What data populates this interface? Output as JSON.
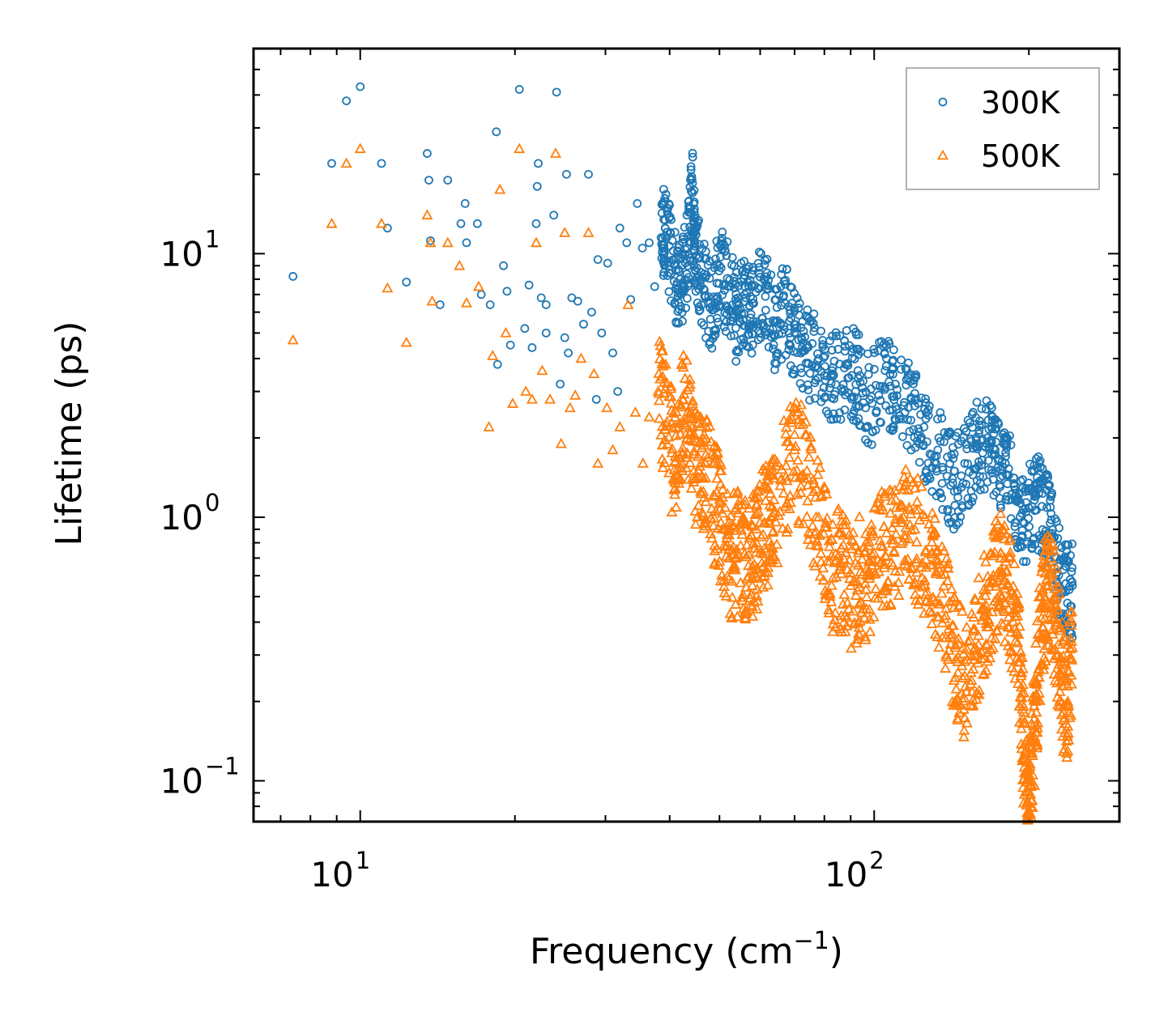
{
  "chart_data": {
    "type": "scatter",
    "xscale": "log",
    "yscale": "log",
    "xlabel": "Frequency (cm",
    "xlabel_sup": "−1",
    "xlabel_tail": ")",
    "ylabel": "Lifetime (ps)",
    "xlim": [
      6.2,
      300
    ],
    "ylim": [
      0.07,
      60
    ],
    "legend_position": "top-right",
    "x_ticks": [
      {
        "value": 10,
        "base": "10",
        "exp": "1"
      },
      {
        "value": 100,
        "base": "10",
        "exp": "2"
      }
    ],
    "y_ticks": [
      {
        "value": 0.1,
        "base": "10",
        "exp": "−1"
      },
      {
        "value": 1,
        "base": "10",
        "exp": "0"
      },
      {
        "value": 10,
        "base": "10",
        "exp": "1"
      }
    ],
    "series": [
      {
        "name": "300K",
        "marker": "circle",
        "color": "#1f77b4",
        "points": [
          [
            7.4,
            8.2
          ],
          [
            8.8,
            22
          ],
          [
            9.4,
            38
          ],
          [
            10.0,
            43
          ],
          [
            11.0,
            22
          ],
          [
            11.3,
            12.5
          ],
          [
            12.3,
            7.8
          ],
          [
            13.5,
            24
          ],
          [
            13.6,
            19
          ],
          [
            13.7,
            11.2
          ],
          [
            14.3,
            6.4
          ],
          [
            14.8,
            19
          ],
          [
            15.7,
            13
          ],
          [
            16.0,
            15.5
          ],
          [
            16.1,
            11
          ],
          [
            16.9,
            13
          ],
          [
            17.2,
            7
          ],
          [
            17.9,
            6.4
          ],
          [
            18.4,
            29
          ],
          [
            18.5,
            3.8
          ],
          [
            19.0,
            9
          ],
          [
            19.3,
            7.2
          ],
          [
            19.6,
            4.5
          ],
          [
            20.4,
            42
          ],
          [
            20.9,
            5.2
          ],
          [
            21.3,
            7.6
          ],
          [
            21.6,
            4.4
          ],
          [
            22.0,
            13
          ],
          [
            22.1,
            18
          ],
          [
            22.2,
            22
          ],
          [
            22.5,
            6.8
          ],
          [
            23.0,
            6.4
          ],
          [
            23.0,
            5.0
          ],
          [
            23.8,
            14
          ],
          [
            24.1,
            41
          ],
          [
            24.5,
            3.2
          ],
          [
            25.0,
            4.8
          ],
          [
            25.2,
            20
          ],
          [
            25.4,
            4.2
          ],
          [
            25.8,
            6.8
          ],
          [
            26.5,
            6.6
          ],
          [
            27.2,
            5.4
          ],
          [
            27.8,
            20
          ],
          [
            28.2,
            6.0
          ],
          [
            28.8,
            2.8
          ],
          [
            29.0,
            9.5
          ],
          [
            29.5,
            5.0
          ],
          [
            30.3,
            9.2
          ],
          [
            31.0,
            4.2
          ],
          [
            31.7,
            3.0
          ],
          [
            32.0,
            12.5
          ],
          [
            33.0,
            11
          ],
          [
            33.6,
            6.7
          ],
          [
            34.6,
            15.5
          ],
          [
            35.4,
            10.5
          ],
          [
            36.5,
            11
          ],
          [
            37.4,
            7.5
          ],
          [
            38.5,
            11.5
          ],
          [
            39.2,
            12.5
          ],
          [
            40.8,
            9.5
          ],
          [
            42.0,
            7.0
          ],
          [
            43.3,
            10.5
          ],
          [
            44.3,
            17
          ],
          [
            44.8,
            11
          ],
          [
            46.0,
            8.5
          ],
          [
            48.0,
            6.5
          ],
          [
            50.0,
            9.0
          ],
          [
            52.0,
            7.5
          ],
          [
            54.0,
            6.0
          ],
          [
            56.0,
            7.0
          ],
          [
            58.0,
            6.5
          ],
          [
            61.0,
            8.0
          ],
          [
            64.0,
            5.5
          ],
          [
            67.0,
            6.5
          ],
          [
            70.0,
            5.0
          ],
          [
            74.0,
            4.5
          ],
          [
            78.0,
            4.0
          ],
          [
            83.0,
            3.5
          ],
          [
            88.0,
            3.8
          ],
          [
            93.0,
            3.6
          ],
          [
            98.0,
            2.8
          ],
          [
            105.0,
            3.6
          ],
          [
            110.0,
            3.2
          ],
          [
            118.0,
            2.8
          ],
          [
            125.0,
            2.2
          ],
          [
            133.0,
            1.8
          ],
          [
            142.0,
            1.4
          ],
          [
            150.0,
            1.6
          ],
          [
            158.0,
            1.9
          ],
          [
            166.0,
            2.0
          ],
          [
            172.0,
            1.8
          ],
          [
            180.0,
            1.6
          ],
          [
            188.0,
            1.2
          ],
          [
            196.0,
            0.95
          ],
          [
            205.0,
            1.25
          ],
          [
            212.0,
            1.1
          ],
          [
            220.0,
            0.95
          ],
          [
            228.0,
            0.65
          ],
          [
            236.0,
            0.56
          ],
          [
            243.0,
            0.55
          ]
        ]
      },
      {
        "name": "500K",
        "marker": "triangle",
        "color": "#ff7f0e",
        "points": [
          [
            7.4,
            4.7
          ],
          [
            8.8,
            13
          ],
          [
            9.4,
            22
          ],
          [
            10.0,
            25
          ],
          [
            11.0,
            13
          ],
          [
            11.3,
            7.4
          ],
          [
            12.3,
            4.6
          ],
          [
            13.5,
            14
          ],
          [
            13.7,
            11
          ],
          [
            13.8,
            6.6
          ],
          [
            14.8,
            11
          ],
          [
            15.6,
            9
          ],
          [
            16.1,
            6.5
          ],
          [
            17.0,
            7.5
          ],
          [
            17.8,
            2.2
          ],
          [
            18.1,
            4.1
          ],
          [
            18.7,
            17.5
          ],
          [
            19.2,
            5.0
          ],
          [
            19.8,
            2.7
          ],
          [
            20.4,
            25
          ],
          [
            21.0,
            3.0
          ],
          [
            21.6,
            2.8
          ],
          [
            22.0,
            11
          ],
          [
            22.6,
            3.6
          ],
          [
            23.4,
            2.8
          ],
          [
            24.0,
            24
          ],
          [
            24.6,
            1.9
          ],
          [
            25.0,
            12
          ],
          [
            25.6,
            2.6
          ],
          [
            26.2,
            2.9
          ],
          [
            26.9,
            4.0
          ],
          [
            27.8,
            12
          ],
          [
            28.5,
            3.5
          ],
          [
            29.0,
            1.6
          ],
          [
            30.2,
            2.6
          ],
          [
            31.0,
            1.8
          ],
          [
            32.0,
            2.2
          ],
          [
            33.2,
            6.4
          ],
          [
            34.3,
            2.5
          ],
          [
            35.5,
            1.6
          ],
          [
            36.5,
            2.4
          ],
          [
            38.0,
            3.0
          ],
          [
            39.5,
            2.3
          ],
          [
            41.0,
            1.7
          ],
          [
            42.5,
            2.8
          ],
          [
            44.0,
            2.1
          ],
          [
            45.5,
            1.5
          ],
          [
            47.0,
            1.6
          ],
          [
            49.0,
            1.2
          ],
          [
            51.0,
            0.9
          ],
          [
            53.0,
            0.75
          ],
          [
            55.0,
            0.78
          ],
          [
            57.0,
            0.72
          ],
          [
            59.0,
            0.8
          ],
          [
            61.0,
            0.95
          ],
          [
            63.0,
            1.0
          ],
          [
            66.0,
            1.4
          ],
          [
            70.0,
            1.8
          ],
          [
            74.0,
            1.5
          ],
          [
            78.0,
            1.0
          ],
          [
            82.0,
            0.68
          ],
          [
            86.0,
            0.65
          ],
          [
            90.0,
            0.55
          ],
          [
            94.0,
            0.62
          ],
          [
            98.0,
            0.6
          ],
          [
            103.0,
            0.78
          ],
          [
            108.0,
            0.82
          ],
          [
            114.0,
            1.0
          ],
          [
            120.0,
            0.9
          ],
          [
            126.0,
            0.75
          ],
          [
            132.0,
            0.62
          ],
          [
            138.0,
            0.45
          ],
          [
            144.0,
            0.32
          ],
          [
            150.0,
            0.25
          ],
          [
            157.0,
            0.32
          ],
          [
            164.0,
            0.45
          ],
          [
            170.0,
            0.58
          ],
          [
            176.0,
            0.7
          ],
          [
            182.0,
            0.55
          ],
          [
            188.0,
            0.42
          ],
          [
            193.0,
            0.25
          ],
          [
            196.0,
            0.12
          ],
          [
            199.0,
            0.082
          ],
          [
            202.0,
            0.1
          ],
          [
            206.0,
            0.2
          ],
          [
            210.0,
            0.35
          ],
          [
            215.0,
            0.5
          ],
          [
            220.0,
            0.62
          ],
          [
            226.0,
            0.4
          ],
          [
            232.0,
            0.25
          ],
          [
            238.0,
            0.2
          ],
          [
            243.0,
            0.32
          ]
        ]
      }
    ]
  }
}
